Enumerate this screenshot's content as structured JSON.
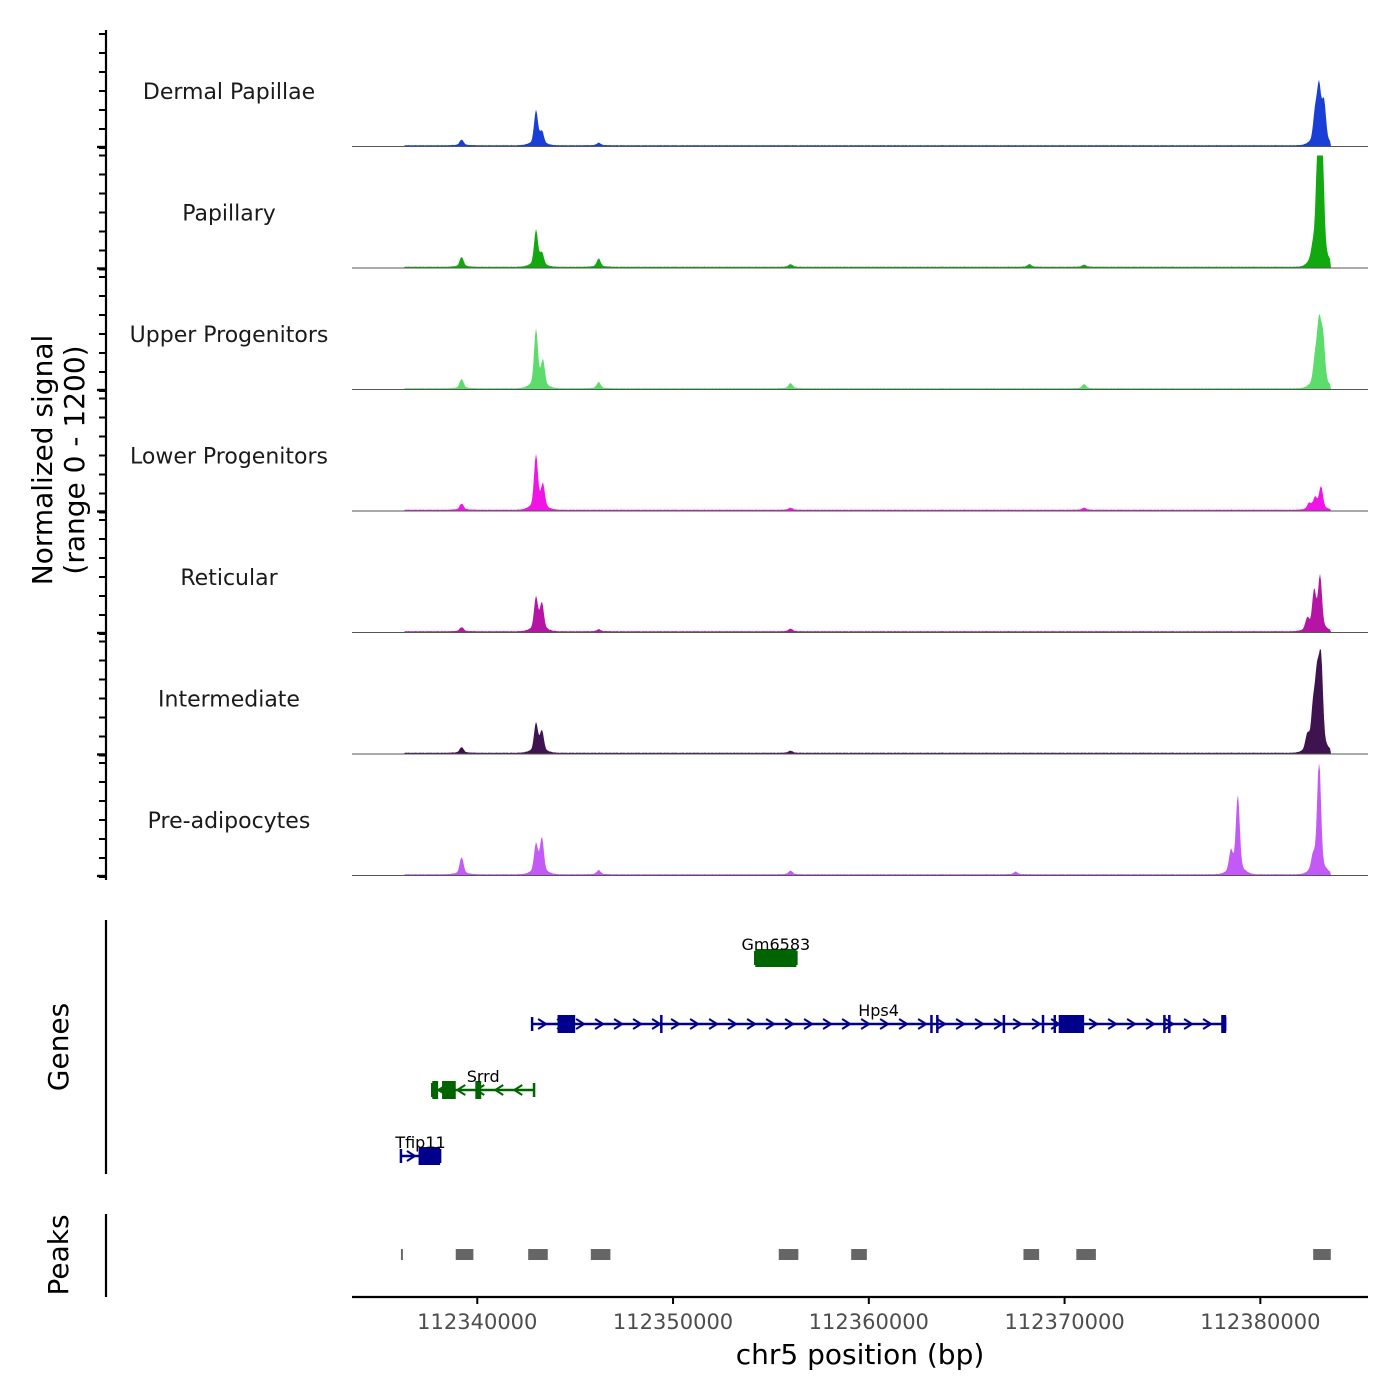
{
  "chart_data": {
    "type": "area",
    "title": "",
    "chromosome": "chr5",
    "xlabel": "chr5 position (bp)",
    "xlim": [
      112333600,
      112385500
    ],
    "x_ticks": [
      112340000,
      112350000,
      112360000,
      112370000,
      112380000
    ],
    "x_tick_labels": [
      "112340000",
      "112350000",
      "112360000",
      "112370000",
      "112380000"
    ],
    "ylabel_line1": "Normalized signal",
    "ylabel_line2": "(range 0 - 1200)",
    "ylim": [
      0,
      1200
    ],
    "coverage_tracks": [
      {
        "name": "Dermal Papillae",
        "color": "#1a3fd6",
        "peaks": [
          [
            112339200,
            55
          ],
          [
            112343000,
            330
          ],
          [
            112343300,
            120
          ],
          [
            112346200,
            25
          ],
          [
            112382800,
            280
          ],
          [
            112383000,
            530
          ],
          [
            112383250,
            390
          ]
        ]
      },
      {
        "name": "Papillary",
        "color": "#12a80f",
        "peaks": [
          [
            112339200,
            95
          ],
          [
            112343000,
            350
          ],
          [
            112343300,
            120
          ],
          [
            112346200,
            80
          ],
          [
            112356000,
            25
          ],
          [
            112368200,
            25
          ],
          [
            112371000,
            20
          ],
          [
            112382700,
            120
          ],
          [
            112382950,
            1200
          ],
          [
            112383150,
            1130
          ]
        ]
      },
      {
        "name": "Upper Progenitors",
        "color": "#5cdc6a",
        "peaks": [
          [
            112339200,
            90
          ],
          [
            112343000,
            560
          ],
          [
            112343350,
            250
          ],
          [
            112346200,
            60
          ],
          [
            112356000,
            50
          ],
          [
            112371000,
            40
          ],
          [
            112382800,
            250
          ],
          [
            112383000,
            580
          ],
          [
            112383200,
            450
          ]
        ]
      },
      {
        "name": "Lower Progenitors",
        "color": "#f015e6",
        "peaks": [
          [
            112339200,
            60
          ],
          [
            112343000,
            520
          ],
          [
            112343350,
            230
          ],
          [
            112356000,
            20
          ],
          [
            112371000,
            20
          ],
          [
            112382500,
            60
          ],
          [
            112382800,
            110
          ],
          [
            112383100,
            220
          ]
        ]
      },
      {
        "name": "Reticular",
        "color": "#b514a4",
        "peaks": [
          [
            112339200,
            40
          ],
          [
            112343000,
            320
          ],
          [
            112343300,
            260
          ],
          [
            112346200,
            20
          ],
          [
            112356000,
            25
          ],
          [
            112382400,
            110
          ],
          [
            112382750,
            370
          ],
          [
            112383050,
            520
          ]
        ]
      },
      {
        "name": "Intermediate",
        "color": "#3f1250",
        "peaks": [
          [
            112339200,
            55
          ],
          [
            112343000,
            280
          ],
          [
            112343300,
            200
          ],
          [
            112356000,
            20
          ],
          [
            112382400,
            140
          ],
          [
            112382700,
            380
          ],
          [
            112382900,
            650
          ],
          [
            112383100,
            840
          ]
        ]
      },
      {
        "name": "Pre-adipocytes",
        "color": "#c35af5",
        "peaks": [
          [
            112339200,
            165
          ],
          [
            112343000,
            280
          ],
          [
            112343300,
            340
          ],
          [
            112346200,
            40
          ],
          [
            112356000,
            35
          ],
          [
            112367500,
            25
          ],
          [
            112378500,
            200
          ],
          [
            112378850,
            750
          ],
          [
            112382700,
            140
          ],
          [
            112383000,
            1100
          ]
        ]
      }
    ],
    "genes_track_label": "Genes",
    "genes": [
      {
        "name": "Gm6583",
        "strand": "+",
        "color": "#006400",
        "start": 112354200,
        "end": 112356300,
        "row": 0,
        "exons": [
          [
            112354200,
            112356300
          ]
        ]
      },
      {
        "name": "Hps4",
        "strand": "+",
        "color": "#00008b",
        "start": 112342800,
        "end": 112378200,
        "row": 1,
        "exons": [
          [
            112344100,
            112345000
          ],
          [
            112369700,
            112371000
          ],
          [
            112378000,
            112378200
          ]
        ],
        "junctions": [
          112349400,
          112363200,
          112363500,
          112366900,
          112368900,
          112369500,
          112375100,
          112375350
        ]
      },
      {
        "name": "Srrd",
        "strand": "-",
        "color": "#006400",
        "start": 112337700,
        "end": 112342900,
        "row": 2,
        "exons": [
          [
            112337700,
            112338000
          ],
          [
            112338200,
            112338900
          ],
          [
            112339900,
            112340200
          ]
        ]
      },
      {
        "name": "Tfip11",
        "strand": "+",
        "color": "#00008b",
        "start": 112336100,
        "end": 112338100,
        "row": 3,
        "exons": [
          [
            112337000,
            112338100
          ]
        ]
      }
    ],
    "peaks_track_label": "Peaks",
    "peak_regions": [
      [
        112336100,
        112336200
      ],
      [
        112338900,
        112339800
      ],
      [
        112342600,
        112343600
      ],
      [
        112345800,
        112346800
      ],
      [
        112355400,
        112356400
      ],
      [
        112359100,
        112359900
      ],
      [
        112367900,
        112368700
      ],
      [
        112370600,
        112371600
      ],
      [
        112382700,
        112383600
      ]
    ]
  }
}
